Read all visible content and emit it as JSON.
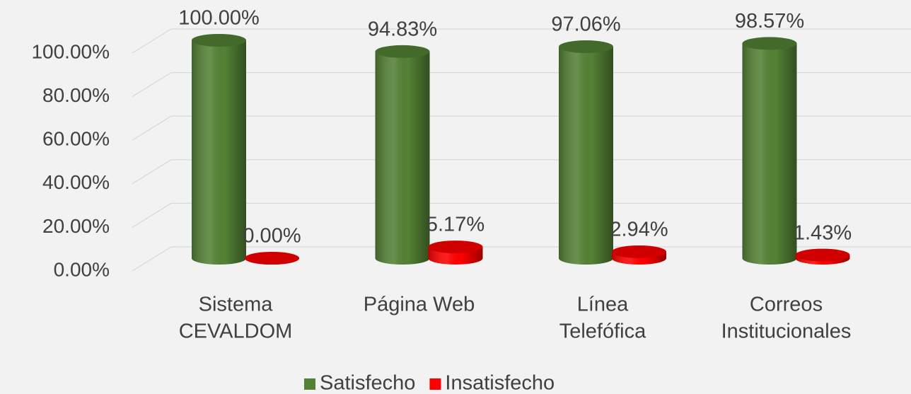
{
  "chart_data": {
    "type": "bar3d",
    "categories": [
      [
        "Sistema",
        "CEVALDOM"
      ],
      [
        "Página Web"
      ],
      [
        "Línea",
        "Telefófica"
      ],
      [
        "Correos",
        "Institucionales"
      ]
    ],
    "series": [
      {
        "name": "Satisfecho",
        "color": "#548235",
        "values": [
          100,
          94.83,
          97.06,
          98.57
        ],
        "value_labels": [
          "100.00%",
          "94.83%",
          "97.06%",
          "98.57%"
        ]
      },
      {
        "name": "Insatisfecho",
        "color": "#ff0000",
        "values": [
          0,
          5.17,
          2.94,
          1.43
        ],
        "value_labels": [
          "0.00%",
          "5.17%",
          "2.94%",
          "1.43%"
        ]
      }
    ],
    "ylim": [
      0,
      100
    ],
    "yticks": [
      {
        "value": 0,
        "label": "0.00%"
      },
      {
        "value": 20,
        "label": "20.00%"
      },
      {
        "value": 40,
        "label": "40.00%"
      },
      {
        "value": 60,
        "label": "60.00%"
      },
      {
        "value": 80,
        "label": "80.00%"
      },
      {
        "value": 100,
        "label": "100.00%"
      }
    ],
    "grid": true,
    "legend": "bottom"
  }
}
